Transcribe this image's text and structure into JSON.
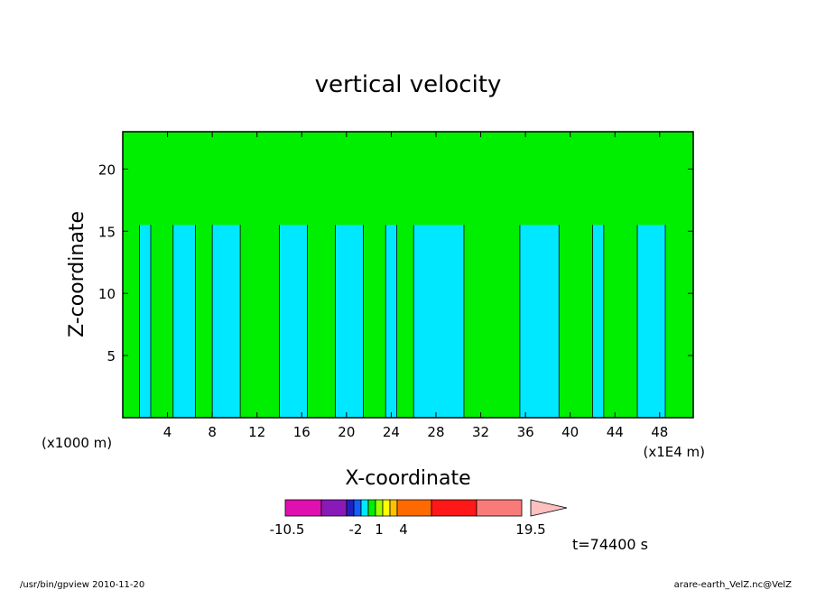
{
  "chart_data": {
    "type": "heatmap",
    "title": "vertical velocity",
    "xlabel": "X-coordinate",
    "ylabel": "Z-coordinate",
    "x_unit_label": "(x1E4 m)",
    "y_unit_label": "(x1000 m)",
    "xlim": [
      0,
      51
    ],
    "ylim": [
      0,
      23
    ],
    "x_ticks": [
      "4",
      "8",
      "12",
      "16",
      "20",
      "24",
      "28",
      "32",
      "36",
      "40",
      "44",
      "48"
    ],
    "y_ticks": [
      "5",
      "10",
      "15",
      "20"
    ],
    "time_label": "t=74400 s",
    "colorbar": {
      "tick_labels": [
        "-10.5",
        "-2",
        "1",
        "4",
        "19.5"
      ],
      "colors": [
        "#e010b0",
        "#8a1ab8",
        "#2020c0",
        "#1060ff",
        "#00e8ff",
        "#00ee00",
        "#a0ff00",
        "#ffff00",
        "#ffc000",
        "#ff6a00",
        "#ff1818",
        "#fa7a7a",
        "#ffc0c0"
      ]
    },
    "dominant_levels": [
      {
        "color": "#00ee00",
        "meaning": "upward (positive) velocity"
      },
      {
        "color": "#00e8ff",
        "meaning": "downward (negative) velocity"
      }
    ],
    "green_columns_x": [
      [
        0,
        1.5
      ],
      [
        2.5,
        4.5
      ],
      [
        6.5,
        8
      ],
      [
        10.5,
        14
      ],
      [
        16.5,
        19
      ],
      [
        21.5,
        23.5
      ],
      [
        24.5,
        26
      ],
      [
        30.5,
        35.5
      ],
      [
        39,
        42
      ],
      [
        43,
        46
      ],
      [
        48.5,
        51
      ]
    ],
    "green_top_band_z": [
      15.5,
      23
    ]
  },
  "footer": {
    "left": "/usr/bin/gpview  2010-11-20",
    "right": "arare-earth_VelZ.nc@VelZ"
  }
}
